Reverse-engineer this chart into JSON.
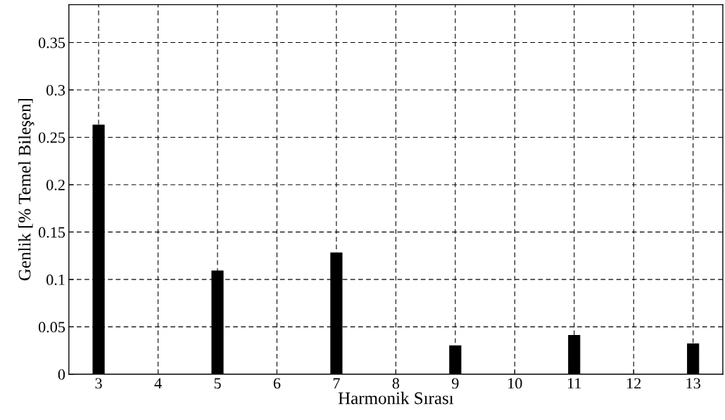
{
  "chart_data": {
    "type": "bar",
    "xlabel": "Harmonik Sırası",
    "ylabel": "Genlik [% Temel Bileşen]",
    "x": [
      3,
      4,
      5,
      6,
      7,
      8,
      9,
      10,
      11,
      12,
      13
    ],
    "values": [
      0.263,
      0,
      0.109,
      0,
      0.128,
      0,
      0.03,
      0,
      0.041,
      0,
      0.032
    ],
    "color": "#000000",
    "xlim": [
      2.5,
      13.5
    ],
    "xticks": [
      3,
      4,
      5,
      6,
      7,
      8,
      9,
      10,
      11,
      12,
      13
    ],
    "ylim": [
      0,
      0.39
    ],
    "yticks": [
      0,
      0.05,
      0.1,
      0.15,
      0.2,
      0.25,
      0.3,
      0.35
    ],
    "grid": true
  }
}
